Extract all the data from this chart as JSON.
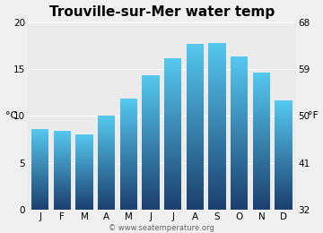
{
  "title": "Trouville-sur-Mer water temp",
  "months": [
    "J",
    "F",
    "M",
    "A",
    "M",
    "J",
    "J",
    "A",
    "S",
    "O",
    "N",
    "D"
  ],
  "values_c": [
    8.6,
    8.4,
    8.0,
    10.0,
    11.8,
    14.3,
    16.1,
    17.7,
    17.8,
    16.3,
    14.6,
    11.6
  ],
  "ylim_c": [
    0,
    20
  ],
  "yticks_c": [
    0,
    5,
    10,
    15,
    20
  ],
  "yticks_f": [
    32,
    41,
    50,
    59,
    68
  ],
  "ylabel_left": "°C",
  "ylabel_right": "°F",
  "watermark": "© www.seatemperature.org",
  "bg_color": "#f0f0f0",
  "plot_bg_color": "#ebebeb",
  "bar_color_top": "#55c8ef",
  "bar_color_bottom": "#1b3f6e",
  "bar_color_mid": "#2a7db5",
  "title_fontsize": 11,
  "tick_fontsize": 7.5,
  "label_fontsize": 8,
  "watermark_fontsize": 6,
  "bar_width": 0.78
}
